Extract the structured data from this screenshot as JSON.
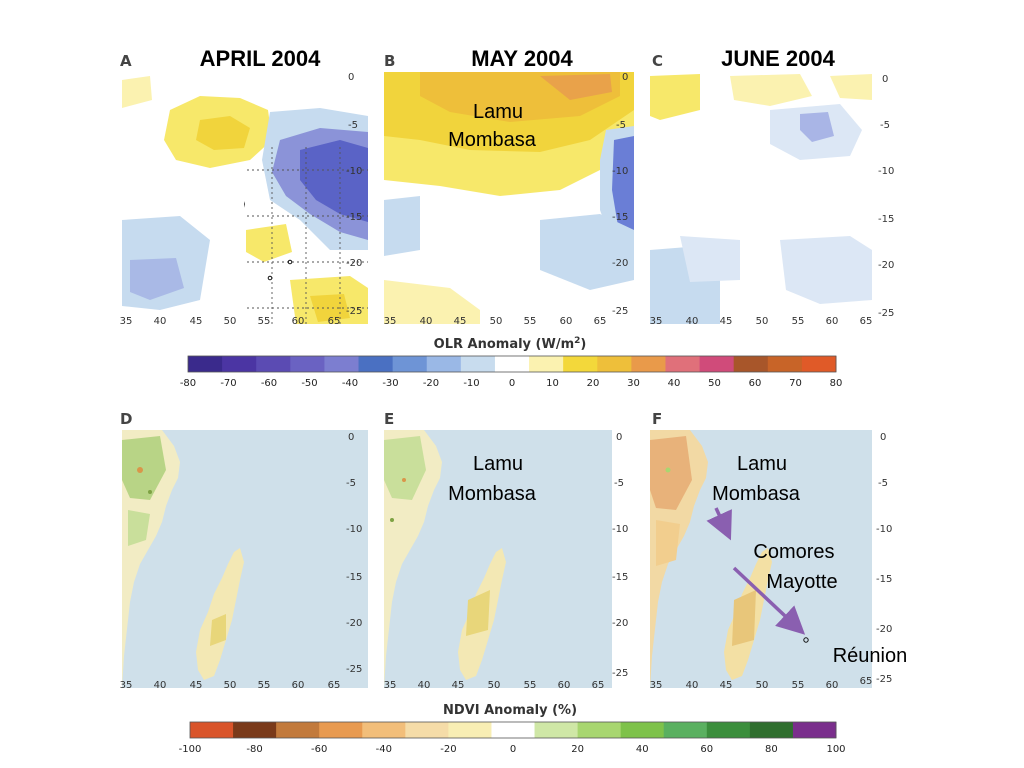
{
  "titles": {
    "april": "APRIL 2004",
    "may": "MAY 2004",
    "june": "JUNE 2004"
  },
  "panels": [
    {
      "id": "A",
      "letter": "A",
      "type": "olr"
    },
    {
      "id": "B",
      "letter": "B",
      "type": "olr"
    },
    {
      "id": "C",
      "letter": "C",
      "type": "olr"
    },
    {
      "id": "D",
      "letter": "D",
      "type": "ndvi"
    },
    {
      "id": "E",
      "letter": "E",
      "type": "ndvi"
    },
    {
      "id": "F",
      "letter": "F",
      "type": "ndvi"
    }
  ],
  "axes": {
    "lon_ticks": [
      "35",
      "40",
      "45",
      "50",
      "55",
      "60",
      "65"
    ],
    "lat_ticks": [
      "0",
      "-5",
      "-10",
      "-15",
      "-20",
      "-25"
    ]
  },
  "places": {
    "lamu": "Lamu",
    "mombasa": "Mombasa",
    "comores": "Comores",
    "mayotte": "Mayotte",
    "reunion": "Réunion"
  },
  "colorbars": {
    "olr": {
      "title": "OLR Anomaly (W/m",
      "title_sup": "2",
      "title_end": ")",
      "ticks": [
        "-80",
        "-70",
        "-60",
        "-50",
        "-40",
        "-30",
        "-20",
        "-10",
        "0",
        "10",
        "20",
        "30",
        "40",
        "50",
        "60",
        "70",
        "80"
      ],
      "colors": [
        "#3a2a8c",
        "#4b35a3",
        "#5b4bb3",
        "#6a62c2",
        "#7c7ed0",
        "#4a70c2",
        "#6e94d6",
        "#9ab8e6",
        "#c8dcee",
        "#ffffff",
        "#fbf2b0",
        "#f3d83a",
        "#eebf3a",
        "#e99a4a",
        "#e0707a",
        "#d04b7a",
        "#a8562a",
        "#c86428",
        "#e05a28"
      ]
    },
    "ndvi": {
      "title": "NDVI Anomaly (%)",
      "ticks": [
        "-100",
        "-80",
        "-60",
        "-40",
        "-20",
        "0",
        "20",
        "40",
        "60",
        "80",
        "100"
      ],
      "colors": [
        "#d9542a",
        "#7a3a1a",
        "#c27a3c",
        "#e89a50",
        "#f2be7a",
        "#f5dca8",
        "#f8eeb4",
        "#ffffff",
        "#cfe7a6",
        "#a8d670",
        "#7ec24a",
        "#5ab060",
        "#3b8e3c",
        "#2f6e2e",
        "#7a2e8c"
      ]
    }
  },
  "colors": {
    "ocean_ndvi": "#cfe0ea",
    "arrow": "#8a5fb0"
  }
}
